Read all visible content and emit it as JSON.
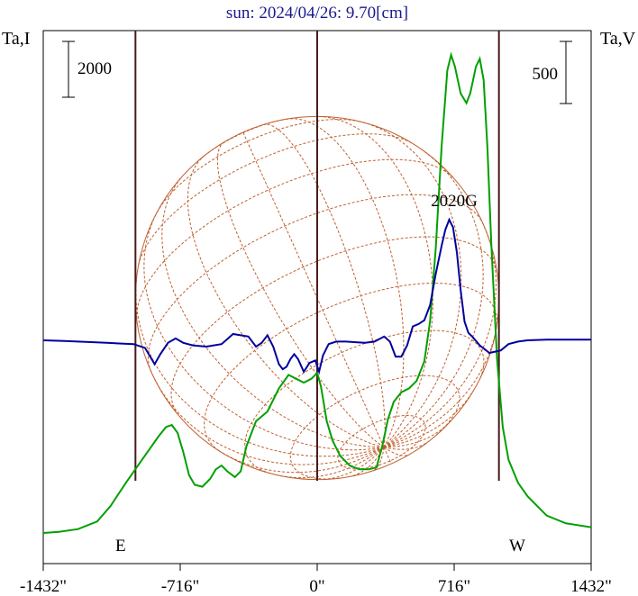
{
  "chart_data": {
    "type": "line",
    "title": "sun: 2024/04/26: 9.70[cm]",
    "left_axis_label": "Ta,I",
    "right_axis_label": "Ta,V",
    "left_scale_label": "2000",
    "right_scale_label": "500",
    "east_label": "E",
    "west_label": "W",
    "annotation": "2020G",
    "x_ticks": [
      "-1432\"",
      "-716\"",
      "0\"",
      "716\"",
      "1432\""
    ],
    "x_tick_values": [
      -1432,
      -716,
      0,
      716,
      1432
    ],
    "xlim": [
      -1432,
      1432
    ],
    "limb_arcsec": 950,
    "annotation_x": 716,
    "stokes_v_ylim": [
      -500,
      2000
    ],
    "series": [
      {
        "key": "stokes_i",
        "color": "#00a000",
        "points": [
          [
            -1432,
            0
          ],
          [
            -1350,
            60
          ],
          [
            -1250,
            200
          ],
          [
            -1150,
            600
          ],
          [
            -1080,
            1400
          ],
          [
            -1000,
            2600
          ],
          [
            -930,
            3600
          ],
          [
            -880,
            4300
          ],
          [
            -830,
            5000
          ],
          [
            -790,
            5500
          ],
          [
            -760,
            5600
          ],
          [
            -730,
            5200
          ],
          [
            -700,
            4200
          ],
          [
            -670,
            3000
          ],
          [
            -640,
            2500
          ],
          [
            -600,
            2400
          ],
          [
            -560,
            2800
          ],
          [
            -530,
            3300
          ],
          [
            -500,
            3500
          ],
          [
            -470,
            3200
          ],
          [
            -430,
            2900
          ],
          [
            -400,
            3200
          ],
          [
            -370,
            4500
          ],
          [
            -320,
            5800
          ],
          [
            -260,
            6300
          ],
          [
            -200,
            7500
          ],
          [
            -150,
            8200
          ],
          [
            -110,
            8000
          ],
          [
            -70,
            7800
          ],
          [
            -30,
            8000
          ],
          [
            0,
            8300
          ],
          [
            20,
            7600
          ],
          [
            50,
            5800
          ],
          [
            80,
            4800
          ],
          [
            120,
            4000
          ],
          [
            170,
            3500
          ],
          [
            220,
            3300
          ],
          [
            270,
            3300
          ],
          [
            310,
            3400
          ],
          [
            340,
            4500
          ],
          [
            370,
            5900
          ],
          [
            400,
            6800
          ],
          [
            440,
            7300
          ],
          [
            480,
            7500
          ],
          [
            520,
            7900
          ],
          [
            560,
            8900
          ],
          [
            590,
            11000
          ],
          [
            620,
            14800
          ],
          [
            650,
            20000
          ],
          [
            680,
            24000
          ],
          [
            700,
            24800
          ],
          [
            720,
            24200
          ],
          [
            750,
            22800
          ],
          [
            780,
            22300
          ],
          [
            800,
            22800
          ],
          [
            830,
            24200
          ],
          [
            850,
            24600
          ],
          [
            870,
            23500
          ],
          [
            890,
            20000
          ],
          [
            910,
            15000
          ],
          [
            940,
            9000
          ],
          [
            970,
            5500
          ],
          [
            1000,
            3800
          ],
          [
            1050,
            2600
          ],
          [
            1100,
            1900
          ],
          [
            1200,
            900
          ],
          [
            1300,
            500
          ],
          [
            1432,
            300
          ]
        ]
      },
      {
        "key": "stokes_v",
        "color": "#0000a0",
        "points": [
          [
            -1432,
            0
          ],
          [
            -1320,
            -5
          ],
          [
            -1100,
            -20
          ],
          [
            -960,
            -30
          ],
          [
            -900,
            -60
          ],
          [
            -850,
            -190
          ],
          [
            -820,
            -110
          ],
          [
            -780,
            -20
          ],
          [
            -740,
            15
          ],
          [
            -700,
            -20
          ],
          [
            -650,
            -40
          ],
          [
            -580,
            -50
          ],
          [
            -500,
            -30
          ],
          [
            -440,
            50
          ],
          [
            -400,
            40
          ],
          [
            -360,
            30
          ],
          [
            -320,
            -50
          ],
          [
            -290,
            -20
          ],
          [
            -260,
            40
          ],
          [
            -230,
            -50
          ],
          [
            -200,
            -190
          ],
          [
            -180,
            -230
          ],
          [
            -160,
            -210
          ],
          [
            -140,
            -150
          ],
          [
            -120,
            -110
          ],
          [
            -100,
            -150
          ],
          [
            -70,
            -250
          ],
          [
            -40,
            -180
          ],
          [
            -10,
            -160
          ],
          [
            10,
            -250
          ],
          [
            30,
            -120
          ],
          [
            60,
            -30
          ],
          [
            100,
            -10
          ],
          [
            150,
            -10
          ],
          [
            200,
            -15
          ],
          [
            250,
            -20
          ],
          [
            300,
            -10
          ],
          [
            350,
            30
          ],
          [
            380,
            -10
          ],
          [
            410,
            -130
          ],
          [
            440,
            -130
          ],
          [
            470,
            -40
          ],
          [
            500,
            110
          ],
          [
            530,
            130
          ],
          [
            560,
            160
          ],
          [
            590,
            280
          ],
          [
            620,
            530
          ],
          [
            650,
            750
          ],
          [
            670,
            880
          ],
          [
            690,
            960
          ],
          [
            710,
            900
          ],
          [
            730,
            700
          ],
          [
            750,
            400
          ],
          [
            770,
            150
          ],
          [
            790,
            60
          ],
          [
            810,
            30
          ],
          [
            850,
            -40
          ],
          [
            900,
            -100
          ],
          [
            930,
            -90
          ],
          [
            960,
            -80
          ],
          [
            1000,
            -30
          ],
          [
            1050,
            -10
          ],
          [
            1100,
            0
          ],
          [
            1200,
            5
          ],
          [
            1300,
            5
          ],
          [
            1432,
            5
          ]
        ]
      }
    ]
  }
}
